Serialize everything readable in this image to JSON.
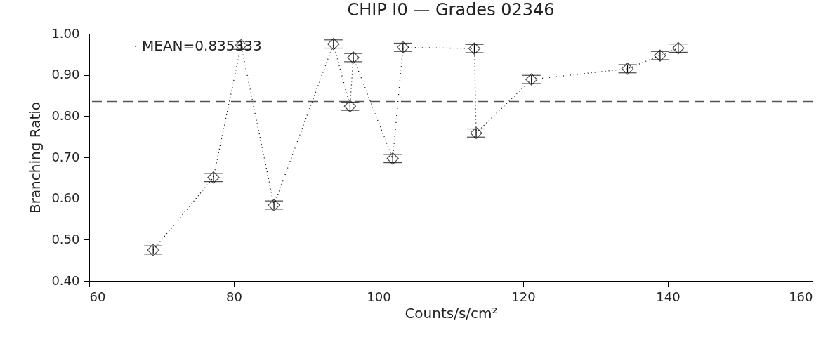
{
  "chart_data": {
    "type": "line",
    "annotations": [
      "MEAN=0.835333"
    ],
    "title": "CHIP I0 — Grades 02346",
    "xlabel": "Counts/s/cm²",
    "ylabel": "Branching Ratio",
    "x": [
      68.85,
      77.18,
      81.0,
      85.54,
      93.77,
      96.06,
      96.51,
      101.96,
      103.38,
      113.25,
      113.5,
      121.14,
      134.42,
      138.92,
      141.44
    ],
    "series": [
      {
        "color": "#000000",
        "marker": "diamond",
        "line_style": "dotted",
        "values": [
          0.475,
          0.651,
          0.972,
          0.584,
          0.975,
          0.824,
          0.942,
          0.697,
          0.967,
          0.964,
          0.759,
          0.889,
          0.915,
          0.947,
          0.965
        ],
        "errors": [
          0.01,
          0.01,
          0.01,
          0.01,
          0.01,
          0.01,
          0.01,
          0.01,
          0.01,
          0.01,
          0.01,
          0.01,
          0.01,
          0.01,
          0.01
        ]
      }
    ],
    "xlim": [
      60,
      160
    ],
    "xticks": [
      60,
      80,
      100,
      120,
      140,
      160
    ],
    "ylim": [
      0.4,
      1.0
    ],
    "yticks": [
      {
        "value": 0.4,
        "label": "0.40"
      },
      {
        "value": 0.5,
        "label": "0.50"
      },
      {
        "value": 0.6,
        "label": "0.60"
      },
      {
        "value": 0.7,
        "label": "0.70"
      },
      {
        "value": 0.8,
        "label": "0.80"
      },
      {
        "value": 0.9,
        "label": "0.90"
      },
      {
        "value": 1.0,
        "label": "1.00"
      }
    ],
    "ref_lines": [
      {
        "axis": "y",
        "value": 0.835333,
        "line_style": "dashed",
        "color": "#555555"
      }
    ],
    "grid": false
  }
}
